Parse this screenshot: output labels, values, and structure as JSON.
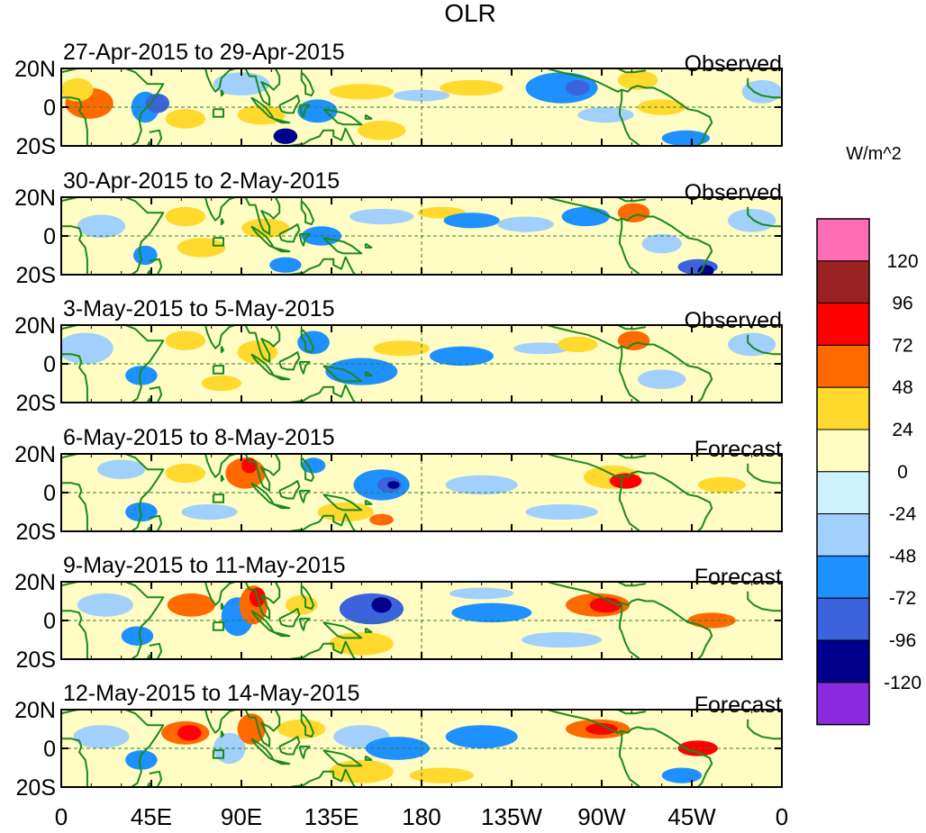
{
  "chart_data": {
    "type": "heatmap",
    "title": "OLR",
    "units": "W/m^2",
    "lat_ticks": [
      "20N",
      "0",
      "20S"
    ],
    "lon_ticks": [
      "0",
      "45E",
      "90E",
      "135E",
      "180",
      "135W",
      "90W",
      "45W",
      "0"
    ],
    "lon_range": [
      0,
      360
    ],
    "lat_range": [
      -20,
      20
    ],
    "colorbar": {
      "levels": [
        "120",
        "96",
        "72",
        "48",
        "24",
        "0",
        "-24",
        "-48",
        "-72",
        "-96",
        "-120"
      ],
      "colors": [
        "#ff6eb4",
        "#9b2222",
        "#ff0000",
        "#ff6a00",
        "#ffd92e",
        "#fffcc4",
        "#cdf2fd",
        "#a0d0fb",
        "#1e90ff",
        "#3c62dc",
        "#00008c",
        "#8a2be2"
      ]
    },
    "panels": [
      {
        "label": "27-Apr-2015 to 29-Apr-2015",
        "type": "Observed",
        "anomalies": [
          {
            "lon": 14,
            "lat": 2,
            "rlon": 12,
            "rlat": 8,
            "value": 50
          },
          {
            "lon": 8,
            "lat": 9,
            "rlon": 8,
            "rlat": 6,
            "value": 30
          },
          {
            "lon": 42,
            "lat": 0,
            "rlon": 7,
            "rlat": 8,
            "value": -50
          },
          {
            "lon": 48,
            "lat": 2,
            "rlon": 6,
            "rlat": 5,
            "value": -80
          },
          {
            "lon": 62,
            "lat": -6,
            "rlon": 10,
            "rlat": 5,
            "value": 30
          },
          {
            "lon": 90,
            "lat": 12,
            "rlon": 14,
            "rlat": 6,
            "value": -30
          },
          {
            "lon": 100,
            "lat": -4,
            "rlon": 12,
            "rlat": 5,
            "value": 30
          },
          {
            "lon": 112,
            "lat": -15,
            "rlon": 6,
            "rlat": 4,
            "value": -110
          },
          {
            "lon": 128,
            "lat": -2,
            "rlon": 10,
            "rlat": 6,
            "value": -50
          },
          {
            "lon": 150,
            "lat": 8,
            "rlon": 16,
            "rlat": 4,
            "value": 30
          },
          {
            "lon": 160,
            "lat": -12,
            "rlon": 12,
            "rlat": 5,
            "value": 30
          },
          {
            "lon": 180,
            "lat": 6,
            "rlon": 14,
            "rlat": 3,
            "value": -30
          },
          {
            "lon": 205,
            "lat": 10,
            "rlon": 16,
            "rlat": 4,
            "value": 30
          },
          {
            "lon": 250,
            "lat": 10,
            "rlon": 18,
            "rlat": 8,
            "value": -50
          },
          {
            "lon": 258,
            "lat": 10,
            "rlon": 6,
            "rlat": 4,
            "value": -80
          },
          {
            "lon": 288,
            "lat": 14,
            "rlon": 10,
            "rlat": 5,
            "value": 30
          },
          {
            "lon": 300,
            "lat": 0,
            "rlon": 12,
            "rlat": 4,
            "value": 30
          },
          {
            "lon": 312,
            "lat": -16,
            "rlon": 12,
            "rlat": 4,
            "value": -50
          },
          {
            "lon": 272,
            "lat": -4,
            "rlon": 14,
            "rlat": 4,
            "value": -30
          },
          {
            "lon": 350,
            "lat": 8,
            "rlon": 10,
            "rlat": 6,
            "value": -30
          }
        ]
      },
      {
        "label": "30-Apr-2015 to 2-May-2015",
        "type": "Observed",
        "anomalies": [
          {
            "lon": 20,
            "lat": 5,
            "rlon": 12,
            "rlat": 6,
            "value": -30
          },
          {
            "lon": 42,
            "lat": -10,
            "rlon": 6,
            "rlat": 5,
            "value": -50
          },
          {
            "lon": 62,
            "lat": 10,
            "rlon": 10,
            "rlat": 5,
            "value": 30
          },
          {
            "lon": 70,
            "lat": -6,
            "rlon": 12,
            "rlat": 5,
            "value": 30
          },
          {
            "lon": 102,
            "lat": 4,
            "rlon": 12,
            "rlat": 5,
            "value": 30
          },
          {
            "lon": 112,
            "lat": -15,
            "rlon": 8,
            "rlat": 4,
            "value": -50
          },
          {
            "lon": 130,
            "lat": 0,
            "rlon": 10,
            "rlat": 5,
            "value": -50
          },
          {
            "lon": 160,
            "lat": 10,
            "rlon": 16,
            "rlat": 4,
            "value": -30
          },
          {
            "lon": 190,
            "lat": 12,
            "rlon": 12,
            "rlat": 3,
            "value": 30
          },
          {
            "lon": 205,
            "lat": 8,
            "rlon": 14,
            "rlat": 4,
            "value": -50
          },
          {
            "lon": 232,
            "lat": 6,
            "rlon": 14,
            "rlat": 4,
            "value": -30
          },
          {
            "lon": 262,
            "lat": 10,
            "rlon": 12,
            "rlat": 5,
            "value": -50
          },
          {
            "lon": 286,
            "lat": 12,
            "rlon": 8,
            "rlat": 5,
            "value": 50
          },
          {
            "lon": 300,
            "lat": -4,
            "rlon": 10,
            "rlat": 5,
            "value": -30
          },
          {
            "lon": 318,
            "lat": -16,
            "rlon": 10,
            "rlat": 4,
            "value": -80
          },
          {
            "lon": 322,
            "lat": -18,
            "rlon": 4,
            "rlat": 3,
            "value": -110
          },
          {
            "lon": 345,
            "lat": 8,
            "rlon": 12,
            "rlat": 6,
            "value": -30
          }
        ]
      },
      {
        "label": "3-May-2015 to 5-May-2015",
        "type": "Observed",
        "anomalies": [
          {
            "lon": 12,
            "lat": 8,
            "rlon": 14,
            "rlat": 8,
            "value": -30
          },
          {
            "lon": 40,
            "lat": -6,
            "rlon": 8,
            "rlat": 5,
            "value": -50
          },
          {
            "lon": 62,
            "lat": 12,
            "rlon": 10,
            "rlat": 5,
            "value": 30
          },
          {
            "lon": 80,
            "lat": -10,
            "rlon": 10,
            "rlat": 4,
            "value": 30
          },
          {
            "lon": 98,
            "lat": 6,
            "rlon": 10,
            "rlat": 6,
            "value": 30
          },
          {
            "lon": 126,
            "lat": 11,
            "rlon": 4,
            "rlat": 4,
            "value": -110
          },
          {
            "lon": 126,
            "lat": 11,
            "rlon": 8,
            "rlat": 6,
            "value": -50
          },
          {
            "lon": 150,
            "lat": -4,
            "rlon": 18,
            "rlat": 7,
            "value": -50
          },
          {
            "lon": 170,
            "lat": 8,
            "rlon": 14,
            "rlat": 4,
            "value": 30
          },
          {
            "lon": 200,
            "lat": 4,
            "rlon": 16,
            "rlat": 5,
            "value": -50
          },
          {
            "lon": 240,
            "lat": 8,
            "rlon": 14,
            "rlat": 3,
            "value": -30
          },
          {
            "lon": 258,
            "lat": 10,
            "rlon": 10,
            "rlat": 4,
            "value": 30
          },
          {
            "lon": 286,
            "lat": 12,
            "rlon": 8,
            "rlat": 5,
            "value": 50
          },
          {
            "lon": 300,
            "lat": -8,
            "rlon": 12,
            "rlat": 5,
            "value": -30
          },
          {
            "lon": 345,
            "lat": 10,
            "rlon": 12,
            "rlat": 6,
            "value": -30
          }
        ]
      },
      {
        "label": "6-May-2015 to 8-May-2015",
        "type": "Forecast",
        "anomalies": [
          {
            "lon": 30,
            "lat": 12,
            "rlon": 12,
            "rlat": 5,
            "value": -30
          },
          {
            "lon": 40,
            "lat": -10,
            "rlon": 8,
            "rlat": 5,
            "value": -50
          },
          {
            "lon": 62,
            "lat": 10,
            "rlon": 10,
            "rlat": 5,
            "value": 30
          },
          {
            "lon": 74,
            "lat": -10,
            "rlon": 14,
            "rlat": 4,
            "value": -30
          },
          {
            "lon": 92,
            "lat": 10,
            "rlon": 10,
            "rlat": 8,
            "value": 50
          },
          {
            "lon": 94,
            "lat": 14,
            "rlon": 4,
            "rlat": 4,
            "value": 80
          },
          {
            "lon": 126,
            "lat": 14,
            "rlon": 6,
            "rlat": 4,
            "value": -50
          },
          {
            "lon": 160,
            "lat": 4,
            "rlon": 14,
            "rlat": 8,
            "value": -50
          },
          {
            "lon": 164,
            "lat": 4,
            "rlon": 6,
            "rlat": 4,
            "value": -80
          },
          {
            "lon": 166,
            "lat": 4,
            "rlon": 3,
            "rlat": 2,
            "value": -110
          },
          {
            "lon": 142,
            "lat": -10,
            "rlon": 14,
            "rlat": 5,
            "value": 30
          },
          {
            "lon": 160,
            "lat": -14,
            "rlon": 6,
            "rlat": 3,
            "value": 50
          },
          {
            "lon": 210,
            "lat": 4,
            "rlon": 18,
            "rlat": 5,
            "value": -30
          },
          {
            "lon": 275,
            "lat": 8,
            "rlon": 14,
            "rlat": 6,
            "value": 30
          },
          {
            "lon": 282,
            "lat": 6,
            "rlon": 8,
            "rlat": 4,
            "value": 80
          },
          {
            "lon": 250,
            "lat": -10,
            "rlon": 18,
            "rlat": 4,
            "value": -30
          },
          {
            "lon": 330,
            "lat": 4,
            "rlon": 12,
            "rlat": 4,
            "value": 30
          }
        ]
      },
      {
        "label": "9-May-2015 to 11-May-2015",
        "type": "Forecast",
        "anomalies": [
          {
            "lon": 22,
            "lat": 8,
            "rlon": 14,
            "rlat": 6,
            "value": -30
          },
          {
            "lon": 38,
            "lat": -8,
            "rlon": 8,
            "rlat": 5,
            "value": -50
          },
          {
            "lon": 65,
            "lat": 8,
            "rlon": 12,
            "rlat": 6,
            "value": 50
          },
          {
            "lon": 88,
            "lat": 2,
            "rlon": 8,
            "rlat": 10,
            "value": -50
          },
          {
            "lon": 96,
            "lat": 8,
            "rlon": 7,
            "rlat": 10,
            "value": 50
          },
          {
            "lon": 98,
            "lat": 12,
            "rlon": 4,
            "rlat": 5,
            "value": 80
          },
          {
            "lon": 120,
            "lat": 8,
            "rlon": 8,
            "rlat": 5,
            "value": 30
          },
          {
            "lon": 155,
            "lat": 6,
            "rlon": 16,
            "rlat": 8,
            "value": -80
          },
          {
            "lon": 160,
            "lat": 8,
            "rlon": 5,
            "rlat": 4,
            "value": -110
          },
          {
            "lon": 150,
            "lat": -12,
            "rlon": 16,
            "rlat": 6,
            "value": 30
          },
          {
            "lon": 215,
            "lat": 4,
            "rlon": 20,
            "rlat": 5,
            "value": -50
          },
          {
            "lon": 210,
            "lat": 14,
            "rlon": 16,
            "rlat": 3,
            "value": -30
          },
          {
            "lon": 268,
            "lat": 8,
            "rlon": 16,
            "rlat": 6,
            "value": 50
          },
          {
            "lon": 272,
            "lat": 8,
            "rlon": 8,
            "rlat": 4,
            "value": 80
          },
          {
            "lon": 325,
            "lat": 0,
            "rlon": 12,
            "rlat": 4,
            "value": 50
          },
          {
            "lon": 250,
            "lat": -10,
            "rlon": 20,
            "rlat": 4,
            "value": -30
          }
        ]
      },
      {
        "label": "12-May-2015 to 14-May-2015",
        "type": "Forecast",
        "anomalies": [
          {
            "lon": 20,
            "lat": 6,
            "rlon": 14,
            "rlat": 6,
            "value": -30
          },
          {
            "lon": 40,
            "lat": -6,
            "rlon": 8,
            "rlat": 5,
            "value": -50
          },
          {
            "lon": 62,
            "lat": 8,
            "rlon": 12,
            "rlat": 6,
            "value": 50
          },
          {
            "lon": 64,
            "lat": 8,
            "rlon": 6,
            "rlat": 4,
            "value": 80
          },
          {
            "lon": 84,
            "lat": 0,
            "rlon": 8,
            "rlat": 8,
            "value": -30
          },
          {
            "lon": 95,
            "lat": 10,
            "rlon": 7,
            "rlat": 8,
            "value": 50
          },
          {
            "lon": 120,
            "lat": 10,
            "rlon": 12,
            "rlat": 5,
            "value": 30
          },
          {
            "lon": 150,
            "lat": 6,
            "rlon": 14,
            "rlat": 6,
            "value": -30
          },
          {
            "lon": 168,
            "lat": 0,
            "rlon": 16,
            "rlat": 6,
            "value": -50
          },
          {
            "lon": 210,
            "lat": 6,
            "rlon": 18,
            "rlat": 6,
            "value": -50
          },
          {
            "lon": 150,
            "lat": -12,
            "rlon": 16,
            "rlat": 6,
            "value": 30
          },
          {
            "lon": 190,
            "lat": -14,
            "rlon": 16,
            "rlat": 4,
            "value": 30
          },
          {
            "lon": 268,
            "lat": 10,
            "rlon": 16,
            "rlat": 5,
            "value": 50
          },
          {
            "lon": 270,
            "lat": 10,
            "rlon": 8,
            "rlat": 3,
            "value": 80
          },
          {
            "lon": 318,
            "lat": 0,
            "rlon": 10,
            "rlat": 4,
            "value": 80
          },
          {
            "lon": 310,
            "lat": -14,
            "rlon": 10,
            "rlat": 4,
            "value": -50
          }
        ]
      }
    ]
  }
}
